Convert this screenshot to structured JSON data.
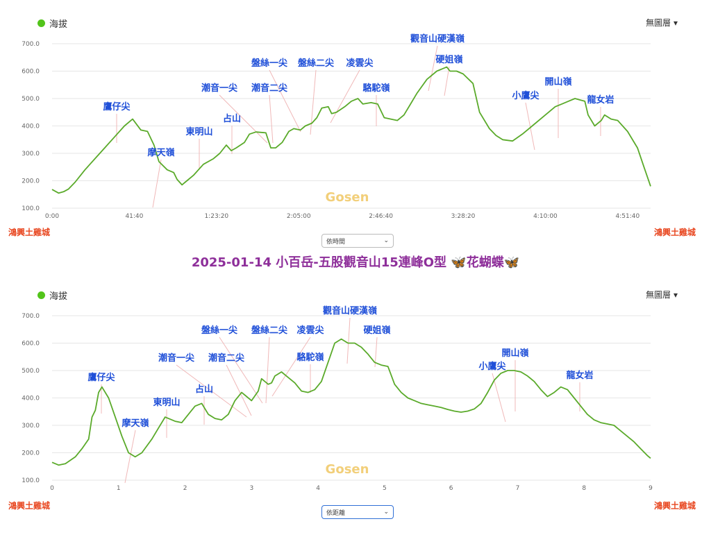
{
  "title": "2025-01-14 小百岳-五股觀音山15連峰O型 🦋花蝴蝶🦋",
  "legend_label": "海拔",
  "layer_menu_label": "無圖層 ▾",
  "watermark": "Gosen",
  "start_label": "鴻興土雞城",
  "end_label": "鴻興土雞城",
  "time_select_value": "依時間",
  "distance_select_value": "依距離",
  "colors": {
    "line": "#5aaa2a",
    "peak_label": "#1f4fd8",
    "endpoint": "#e8461f",
    "title": "#8e2f9a",
    "legend_dot": "#52c41a"
  },
  "chart_data": [
    {
      "type": "line",
      "x_axis": "time",
      "ylim": [
        100,
        700
      ],
      "y_ticks": [
        "100.0",
        "200.0",
        "300.0",
        "400.0",
        "500.0",
        "600.0",
        "700.0"
      ],
      "x_ticks": [
        "0:00",
        "41:40",
        "1:23:20",
        "2:05:00",
        "2:46:40",
        "3:28:20",
        "4:10:00",
        "4:51:40"
      ],
      "x_tick_values": [
        0,
        2500,
        5000,
        7500,
        10000,
        12500,
        15000,
        17500
      ],
      "xlim": [
        0,
        18200
      ],
      "grid": true,
      "series": [
        {
          "x": [
            0,
            200,
            350,
            500,
            700,
            1000,
            1300,
            1600,
            1900,
            2200,
            2450,
            2700,
            2900,
            3100,
            3250,
            3500,
            3700,
            3800,
            3950,
            4100,
            4300,
            4600,
            4900,
            5100,
            5300,
            5450,
            5600,
            5850,
            6000,
            6200,
            6500,
            6650,
            6800,
            7000,
            7200,
            7350,
            7550,
            7700,
            7900,
            8050,
            8200,
            8400,
            8500,
            8650,
            8900,
            9100,
            9300,
            9450,
            9700,
            9900,
            10100,
            10300,
            10500,
            10700,
            10900,
            11100,
            11400,
            11700,
            12000,
            12100,
            12300,
            12500,
            12800,
            13000,
            13300,
            13500,
            13700,
            14000,
            14300,
            14600,
            15000,
            15300,
            15500,
            15700,
            15900,
            16050,
            16200,
            16300,
            16500,
            16700,
            16800,
            17000,
            17200,
            17500,
            17800,
            18000,
            18200
          ],
          "y": [
            168,
            155,
            160,
            170,
            195,
            240,
            280,
            320,
            360,
            400,
            425,
            385,
            380,
            330,
            270,
            240,
            230,
            205,
            185,
            200,
            220,
            260,
            280,
            300,
            330,
            310,
            320,
            340,
            370,
            378,
            375,
            320,
            320,
            340,
            380,
            390,
            385,
            400,
            410,
            430,
            465,
            470,
            445,
            450,
            470,
            490,
            500,
            480,
            485,
            480,
            430,
            425,
            420,
            440,
            480,
            520,
            570,
            600,
            615,
            600,
            600,
            590,
            555,
            450,
            390,
            365,
            350,
            345,
            370,
            400,
            440,
            470,
            480,
            490,
            500,
            495,
            490,
            440,
            400,
            420,
            440,
            425,
            420,
            380,
            320,
            250,
            180
          ]
        }
      ],
      "peaks": [
        "鷹仔尖",
        "摩天嶺",
        "東明山",
        "占山",
        "潮音一尖",
        "潮音二尖",
        "盤絲一尖",
        "盤絲二尖",
        "凌雲尖",
        "駱駝嶺",
        "觀音山硬漢嶺",
        "硬姐嶺",
        "小鷹尖",
        "開山嶺",
        "龍女岩"
      ]
    },
    {
      "type": "line",
      "x_axis": "distance",
      "ylim": [
        100,
        700
      ],
      "y_ticks": [
        "100.0",
        "200.0",
        "300.0",
        "400.0",
        "500.0",
        "600.0",
        "700.0"
      ],
      "x_ticks": [
        "0",
        "1",
        "2",
        "3",
        "4",
        "5",
        "6",
        "7",
        "8",
        "9"
      ],
      "x_tick_values": [
        0,
        1,
        2,
        3,
        4,
        5,
        6,
        7,
        8,
        9
      ],
      "xlim": [
        0,
        9
      ],
      "grid": true,
      "series": [
        {
          "x": [
            0,
            0.1,
            0.2,
            0.35,
            0.45,
            0.55,
            0.6,
            0.65,
            0.7,
            0.75,
            0.85,
            0.95,
            1.05,
            1.15,
            1.25,
            1.35,
            1.5,
            1.6,
            1.7,
            1.85,
            1.95,
            2.05,
            2.15,
            2.25,
            2.35,
            2.45,
            2.55,
            2.65,
            2.75,
            2.85,
            2.9,
            3.0,
            3.1,
            3.15,
            3.25,
            3.3,
            3.35,
            3.45,
            3.55,
            3.65,
            3.75,
            3.85,
            3.95,
            4.05,
            4.15,
            4.25,
            4.35,
            4.45,
            4.55,
            4.65,
            4.75,
            4.85,
            4.95,
            5.05,
            5.15,
            5.25,
            5.35,
            5.45,
            5.55,
            5.65,
            5.75,
            5.85,
            5.95,
            6.05,
            6.15,
            6.25,
            6.35,
            6.45,
            6.55,
            6.65,
            6.75,
            6.85,
            6.95,
            7.05,
            7.15,
            7.25,
            7.35,
            7.45,
            7.55,
            7.65,
            7.75,
            7.85,
            7.95,
            8.05,
            8.15,
            8.25,
            8.35,
            8.45,
            8.55,
            8.65,
            8.75,
            8.85,
            8.95,
            9.0
          ],
          "y": [
            165,
            155,
            160,
            185,
            215,
            250,
            330,
            355,
            420,
            440,
            400,
            330,
            260,
            200,
            185,
            200,
            250,
            290,
            330,
            315,
            310,
            340,
            370,
            380,
            340,
            325,
            320,
            340,
            390,
            420,
            410,
            390,
            425,
            470,
            450,
            455,
            480,
            495,
            475,
            455,
            425,
            420,
            430,
            460,
            530,
            600,
            615,
            600,
            600,
            585,
            560,
            530,
            520,
            515,
            450,
            420,
            400,
            390,
            380,
            375,
            370,
            365,
            358,
            352,
            348,
            352,
            360,
            380,
            420,
            465,
            490,
            500,
            500,
            495,
            480,
            460,
            430,
            405,
            420,
            440,
            430,
            400,
            370,
            340,
            320,
            310,
            305,
            300,
            280,
            260,
            240,
            215,
            190,
            180
          ]
        }
      ],
      "peaks": [
        "鷹仔尖",
        "摩天嶺",
        "東明山",
        "占山",
        "潮音一尖",
        "潮音二尖",
        "盤絲一尖",
        "盤絲二尖",
        "凌雲尖",
        "駱駝嶺",
        "觀音山硬漢嶺",
        "硬姐嶺",
        "小鷹尖",
        "開山嶺",
        "龍女岩"
      ]
    }
  ]
}
